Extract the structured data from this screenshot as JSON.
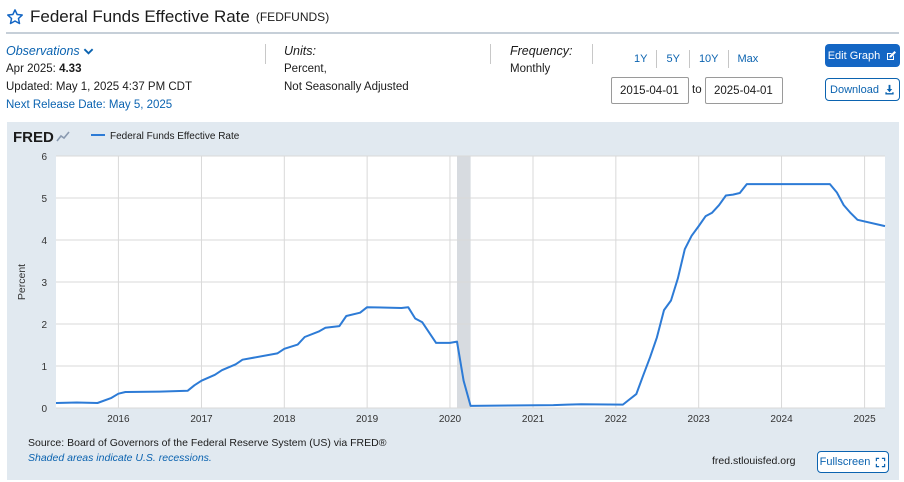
{
  "header": {
    "title": "Federal Funds Effective Rate",
    "series_id": "(FEDFUNDS)"
  },
  "observations": {
    "label": "Observations",
    "period": "Apr 2025:",
    "value": "4.33",
    "updated": "Updated: May 1, 2025 4:37 PM CDT",
    "next_release": "Next Release Date: May 5, 2025"
  },
  "units": {
    "label": "Units:",
    "line1": "Percent,",
    "line2": "Not Seasonally Adjusted"
  },
  "frequency": {
    "label": "Frequency:",
    "value": "Monthly"
  },
  "ranges": [
    "1Y",
    "5Y",
    "10Y",
    "Max"
  ],
  "date_range": {
    "start": "2015-04-01",
    "to_label": "to",
    "end": "2025-04-01"
  },
  "buttons": {
    "edit_graph": "Edit Graph",
    "download": "Download",
    "fullscreen": "Fullscreen"
  },
  "footer": {
    "source": "Source: Board of Governors of the Federal Reserve System (US) via FRED®",
    "recession_note": "Shaded areas indicate U.S. recessions.",
    "url": "fred.stlouisfed.org"
  },
  "colors": {
    "accent": "#1466c4",
    "link": "#0b63b0",
    "series_line": "#2d7bd6",
    "recession_shade": "#d7dbe0",
    "panel_bg": "#e1e9f0"
  },
  "chart_data": {
    "type": "line",
    "brand": "FRED",
    "legend": "Federal Funds Effective Rate",
    "legend_position": "top-left",
    "ylabel": "Percent",
    "xlabel": "",
    "ylim": [
      0,
      6
    ],
    "yticks": [
      0,
      1,
      2,
      3,
      4,
      5,
      6
    ],
    "xlim": [
      "2015-04-01",
      "2025-04-01"
    ],
    "xticks": [
      "2016",
      "2017",
      "2018",
      "2019",
      "2020",
      "2021",
      "2022",
      "2023",
      "2024",
      "2025"
    ],
    "grid": true,
    "recessions": [
      {
        "start": "2020-02-01",
        "end": "2020-04-01"
      }
    ],
    "series": [
      {
        "name": "Federal Funds Effective Rate",
        "x": [
          "2015-04-01",
          "2015-07-01",
          "2015-10-01",
          "2015-12-01",
          "2016-01-01",
          "2016-02-01",
          "2016-07-01",
          "2016-11-01",
          "2016-12-01",
          "2017-01-01",
          "2017-03-01",
          "2017-04-01",
          "2017-06-01",
          "2017-07-01",
          "2017-12-01",
          "2018-01-01",
          "2018-03-01",
          "2018-04-01",
          "2018-06-01",
          "2018-07-01",
          "2018-09-01",
          "2018-10-01",
          "2018-12-01",
          "2019-01-01",
          "2019-06-01",
          "2019-07-01",
          "2019-08-01",
          "2019-09-01",
          "2019-11-01",
          "2020-01-01",
          "2020-02-01",
          "2020-03-01",
          "2020-04-01",
          "2021-04-01",
          "2021-06-01",
          "2021-08-01",
          "2022-02-01",
          "2022-03-01",
          "2022-04-01",
          "2022-05-01",
          "2022-06-01",
          "2022-07-01",
          "2022-08-01",
          "2022-09-01",
          "2022-10-01",
          "2022-11-01",
          "2022-12-01",
          "2023-01-01",
          "2023-02-01",
          "2023-03-01",
          "2023-04-01",
          "2023-05-01",
          "2023-06-01",
          "2023-07-01",
          "2023-08-01",
          "2024-08-01",
          "2024-09-01",
          "2024-10-01",
          "2024-11-01",
          "2024-12-01",
          "2025-04-01"
        ],
        "values": [
          0.12,
          0.13,
          0.12,
          0.24,
          0.34,
          0.38,
          0.39,
          0.41,
          0.54,
          0.65,
          0.79,
          0.9,
          1.04,
          1.15,
          1.3,
          1.41,
          1.51,
          1.69,
          1.82,
          1.91,
          1.95,
          2.19,
          2.27,
          2.4,
          2.38,
          2.4,
          2.13,
          2.04,
          1.55,
          1.55,
          1.58,
          0.65,
          0.05,
          0.07,
          0.08,
          0.09,
          0.08,
          0.2,
          0.33,
          0.77,
          1.21,
          1.68,
          2.33,
          2.56,
          3.08,
          3.78,
          4.1,
          4.33,
          4.57,
          4.65,
          4.83,
          5.06,
          5.08,
          5.12,
          5.33,
          5.33,
          5.13,
          4.83,
          4.64,
          4.48,
          4.33
        ]
      }
    ]
  }
}
